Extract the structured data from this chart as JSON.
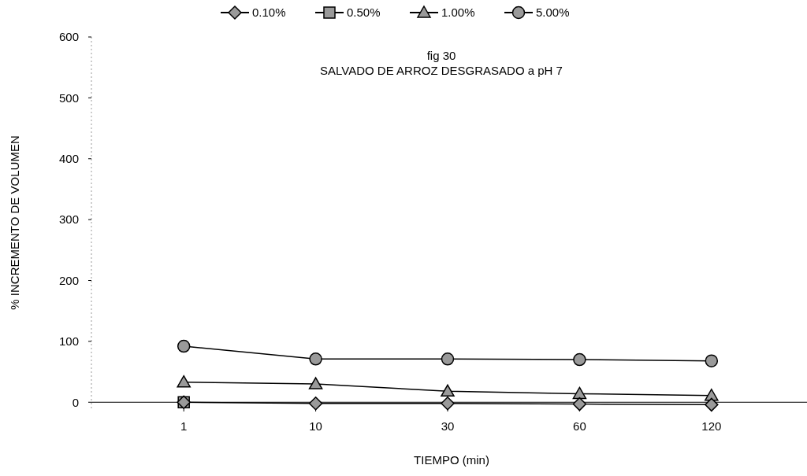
{
  "chart_data": {
    "type": "line",
    "title": "fig  30",
    "subtitle": "SALVADO DE ARROZ DESGRASADO a pH 7",
    "xlabel": "TIEMPO (min)",
    "ylabel": "% INCREMENTO DE VOLUMEN",
    "categories": [
      "1",
      "10",
      "30",
      "60",
      "120"
    ],
    "series": [
      {
        "name": "0.10%",
        "color": "#000000",
        "marker": "diamond",
        "values": [
          0,
          -2,
          -2,
          -3,
          -4
        ]
      },
      {
        "name": "0.50%",
        "color": "#000000",
        "marker": "square",
        "values": [
          0,
          null,
          null,
          null,
          null
        ]
      },
      {
        "name": "1.00%",
        "color": "#000000",
        "marker": "triangle",
        "values": [
          33,
          30,
          18,
          14,
          11
        ]
      },
      {
        "name": "5.00%",
        "color": "#000000",
        "marker": "circle",
        "values": [
          92,
          71,
          71,
          70,
          68
        ]
      }
    ],
    "ylim": [
      -10,
      600
    ],
    "yticks": [
      0,
      100,
      200,
      300,
      400,
      500,
      600
    ],
    "grid": false,
    "legend": "top"
  }
}
